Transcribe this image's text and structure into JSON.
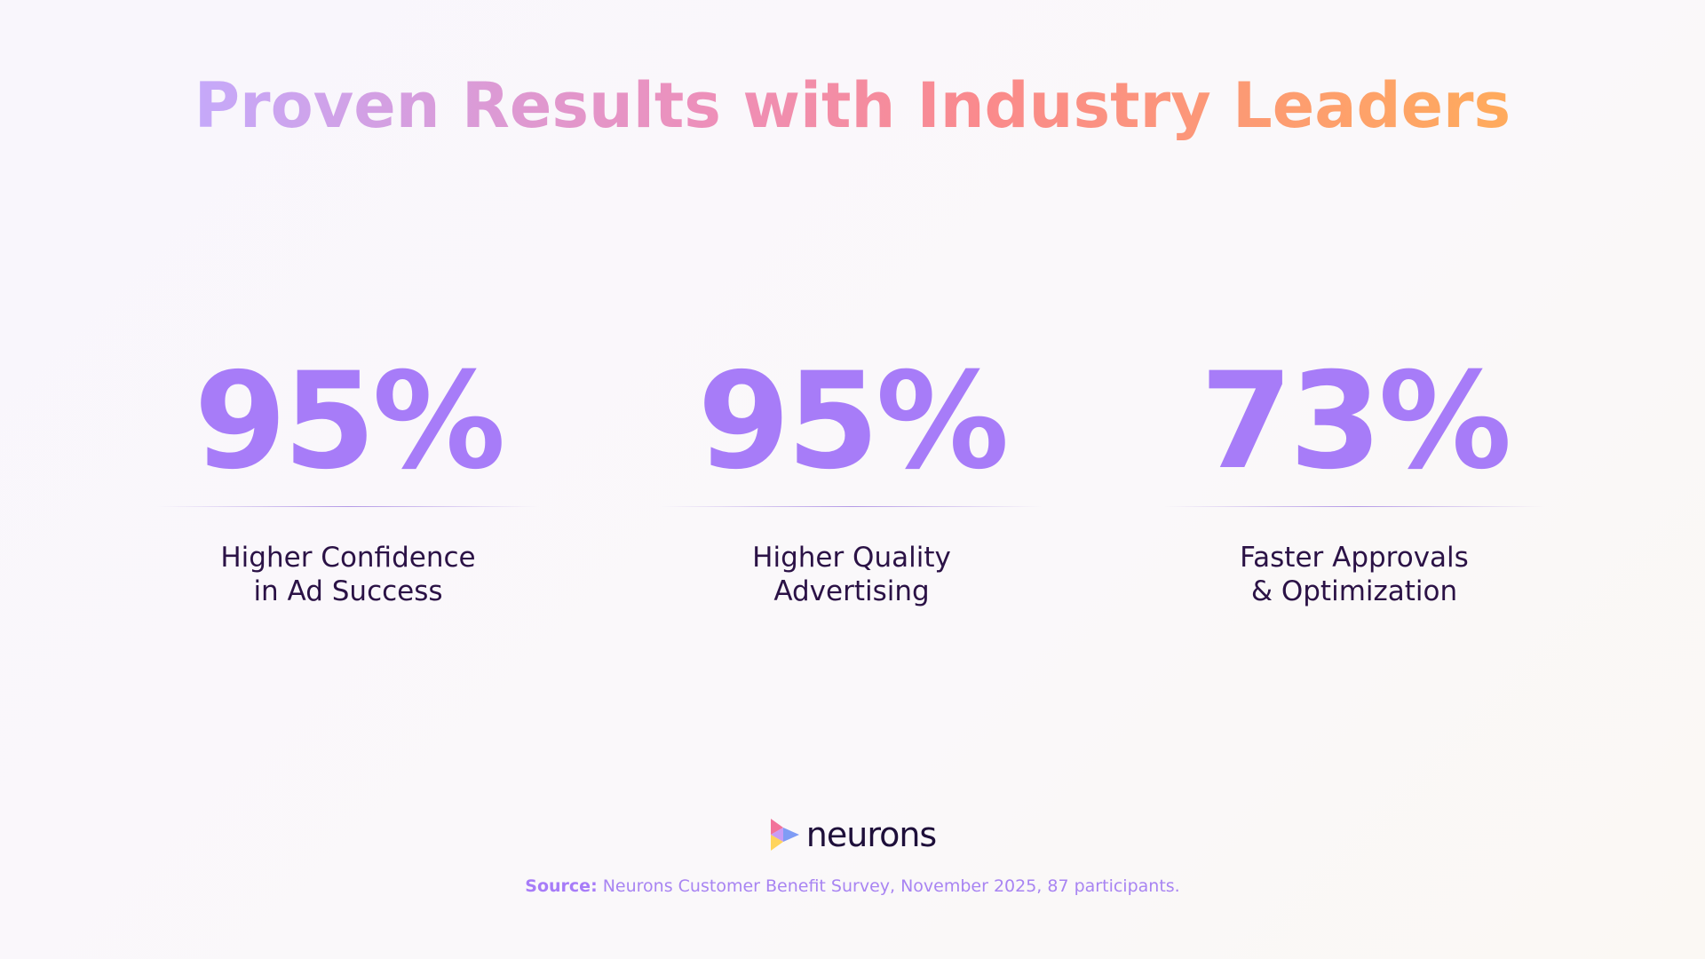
{
  "header": {
    "title": "Proven Results with Industry Leaders"
  },
  "stats": [
    {
      "value": "95%",
      "label": [
        "Higher Confidence",
        "in Ad Success"
      ]
    },
    {
      "value": "95%",
      "label": [
        "Higher Quality",
        "Advertising"
      ]
    },
    {
      "value": "73%",
      "label": [
        "Faster Approvals",
        "& Optimization"
      ]
    }
  ],
  "footer": {
    "logo": "neurons",
    "source_label": "Source:",
    "source_text": "Neurons Customer Benefit Survey, November 2025, 87 participants."
  }
}
